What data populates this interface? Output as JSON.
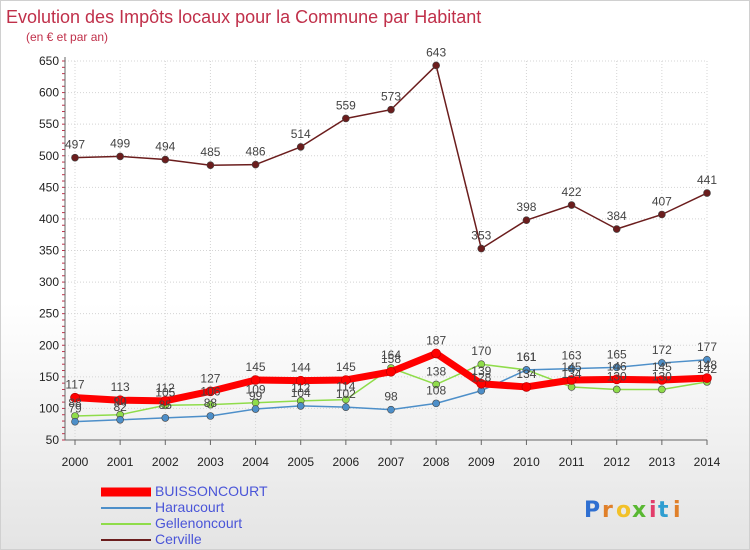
{
  "chart_data": {
    "type": "line",
    "title": "Evolution des Impôts locaux pour la Commune par Habitant",
    "subtitle": "(en € et par an)",
    "x": [
      "2000",
      "2001",
      "2002",
      "2003",
      "2004",
      "2005",
      "2006",
      "2007",
      "2008",
      "2009",
      "2010",
      "2011",
      "2012",
      "2013",
      "2014"
    ],
    "ylim": [
      50,
      650
    ],
    "yticks": [
      50,
      100,
      150,
      200,
      250,
      300,
      350,
      400,
      450,
      500,
      550,
      600,
      650
    ],
    "grid": true,
    "legend_position": "bottom-left",
    "series": [
      {
        "name": "BUISSONCOURT",
        "color": "#ff0000",
        "values": [
          117,
          113,
          112,
          127,
          145,
          144,
          145,
          158,
          187,
          139,
          134,
          145,
          146,
          145,
          148
        ],
        "labels": [
          "117",
          "113",
          "112",
          "127",
          "145",
          "144",
          "145",
          "158",
          "187",
          "139",
          "134",
          "145",
          "146",
          "145",
          "148"
        ]
      },
      {
        "name": "Haraucourt",
        "color": "#4d8fc9",
        "values": [
          79,
          82,
          85,
          88,
          99,
          104,
          102,
          98,
          108,
          128,
          161,
          163,
          165,
          172,
          177
        ],
        "labels": [
          "79",
          "82",
          "85",
          "88",
          "99",
          "104",
          "102",
          "98",
          "108",
          "128",
          "161",
          "163",
          "165",
          "172",
          "177"
        ]
      },
      {
        "name": "Gellenoncourt",
        "color": "#8fdc4a",
        "values": [
          88,
          90,
          105,
          106,
          109,
          112,
          114,
          164,
          138,
          170,
          161,
          134,
          130,
          130,
          142
        ],
        "labels": [
          "88",
          "90",
          "105",
          "106",
          "109",
          "112",
          "114",
          "164",
          "138",
          "170",
          "161",
          "134",
          "130",
          "130",
          "142"
        ]
      },
      {
        "name": "Cerville",
        "color": "#6b1d1d",
        "values": [
          497,
          499,
          494,
          485,
          486,
          514,
          559,
          573,
          643,
          353,
          398,
          422,
          384,
          407,
          441
        ],
        "labels": [
          "497",
          "499",
          "494",
          "485",
          "486",
          "514",
          "559",
          "573",
          "643",
          "353",
          "398",
          "422",
          "384",
          "407",
          "441"
        ]
      }
    ]
  },
  "brand": {
    "logo_text": "Proxiti",
    "letters": [
      "P",
      "r",
      "o",
      "x",
      "i",
      "t",
      "i"
    ],
    "letter_colors": [
      "#2f6fd1",
      "#e0802a",
      "#f2c129",
      "#59b832",
      "#e23d6a",
      "#2f9ed1",
      "#e0802a"
    ]
  }
}
